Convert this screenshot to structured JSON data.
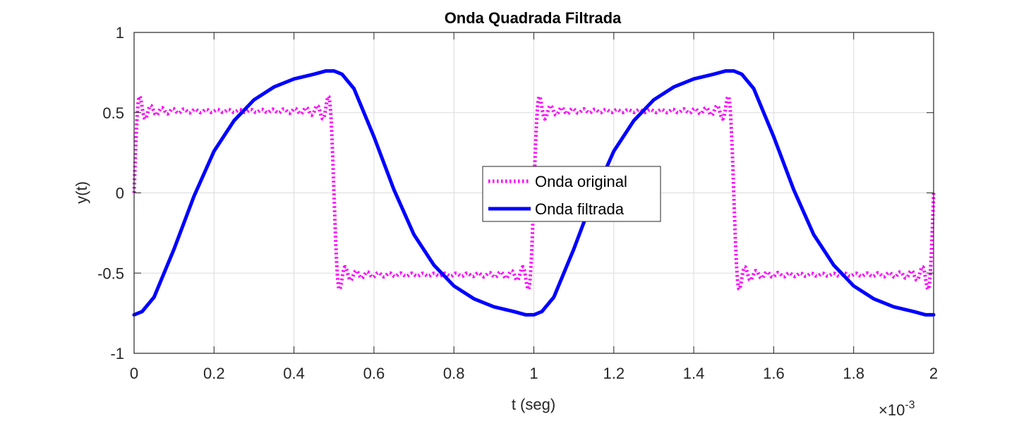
{
  "chart_data": {
    "type": "line",
    "title": "Onda Quadrada Filtrada",
    "xlabel": "t (seg)",
    "ylabel": "y(t)",
    "x_multiplier": {
      "base": "×10",
      "exponent": "-3"
    },
    "xlim": [
      0,
      2
    ],
    "ylim": [
      -1,
      1
    ],
    "x_ticks": [
      0,
      0.2,
      0.4,
      0.6,
      0.8,
      1,
      1.2,
      1.4,
      1.6,
      1.8,
      2
    ],
    "x_tick_labels": [
      "0",
      "0.2",
      "0.4",
      "0.6",
      "0.8",
      "1",
      "1.2",
      "1.4",
      "1.6",
      "1.8",
      "2"
    ],
    "y_ticks": [
      -1,
      -0.5,
      0,
      0.5,
      1
    ],
    "y_tick_labels": [
      "-1",
      "-0.5",
      "0",
      "0.5",
      "1"
    ],
    "grid": true,
    "legend_position": "center",
    "series": [
      {
        "name": "Onda original",
        "color": "#ff00ff",
        "style": "dotted",
        "model": "fourier-square-wave",
        "harmonics": [
          1,
          3,
          5,
          7,
          9,
          11,
          13,
          15,
          17,
          19,
          21,
          23,
          25,
          27,
          29,
          31,
          33,
          35
        ],
        "period": 1,
        "amplitude": 0.65
      },
      {
        "name": "Onda filtrada",
        "color": "#0000ff",
        "style": "solid",
        "points": [
          [
            0,
            -0.76
          ],
          [
            0.02,
            -0.74
          ],
          [
            0.05,
            -0.65
          ],
          [
            0.1,
            -0.35
          ],
          [
            0.15,
            -0.02
          ],
          [
            0.2,
            0.26
          ],
          [
            0.25,
            0.45
          ],
          [
            0.3,
            0.58
          ],
          [
            0.35,
            0.66
          ],
          [
            0.4,
            0.71
          ],
          [
            0.45,
            0.74
          ],
          [
            0.48,
            0.76
          ],
          [
            0.5,
            0.76
          ],
          [
            0.52,
            0.74
          ],
          [
            0.55,
            0.65
          ],
          [
            0.6,
            0.35
          ],
          [
            0.65,
            0.02
          ],
          [
            0.7,
            -0.26
          ],
          [
            0.75,
            -0.45
          ],
          [
            0.8,
            -0.58
          ],
          [
            0.85,
            -0.66
          ],
          [
            0.9,
            -0.71
          ],
          [
            0.95,
            -0.74
          ],
          [
            0.98,
            -0.76
          ],
          [
            1.0,
            -0.76
          ],
          [
            1.02,
            -0.74
          ],
          [
            1.05,
            -0.65
          ],
          [
            1.1,
            -0.35
          ],
          [
            1.15,
            -0.02
          ],
          [
            1.2,
            0.26
          ],
          [
            1.25,
            0.45
          ],
          [
            1.3,
            0.58
          ],
          [
            1.35,
            0.66
          ],
          [
            1.4,
            0.71
          ],
          [
            1.45,
            0.74
          ],
          [
            1.48,
            0.76
          ],
          [
            1.5,
            0.76
          ],
          [
            1.52,
            0.74
          ],
          [
            1.55,
            0.65
          ],
          [
            1.6,
            0.35
          ],
          [
            1.65,
            0.02
          ],
          [
            1.7,
            -0.26
          ],
          [
            1.75,
            -0.45
          ],
          [
            1.8,
            -0.58
          ],
          [
            1.85,
            -0.66
          ],
          [
            1.9,
            -0.71
          ],
          [
            1.95,
            -0.74
          ],
          [
            1.98,
            -0.76
          ],
          [
            2.0,
            -0.76
          ]
        ]
      }
    ]
  }
}
